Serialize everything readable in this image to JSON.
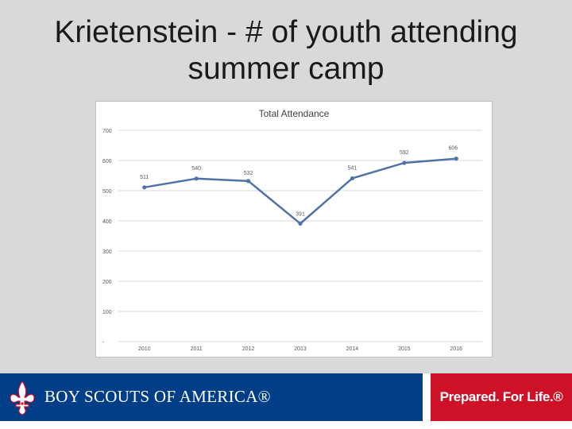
{
  "slide": {
    "title_line1": "Krietenstein - # of youth attending",
    "title_line2": "summer camp"
  },
  "footer": {
    "org_name": "BOY SCOUTS OF AMERICA®",
    "tagline": "Prepared. For Life.®",
    "logo_icon": "fleur-de-lis-icon",
    "colors": {
      "brand_blue": "#003f87",
      "brand_red": "#ce1126"
    }
  },
  "chart_data": {
    "type": "line",
    "title": "Total Attendance",
    "xlabel": "",
    "ylabel": "",
    "categories": [
      "2010",
      "2011",
      "2012",
      "2013",
      "2014",
      "2015",
      "2016"
    ],
    "series": [
      {
        "values": [
          511,
          540,
          532,
          391,
          541,
          592,
          606
        ],
        "color": "#4f72a6"
      }
    ],
    "data_labels": [
      "511",
      "540",
      "532",
      "391",
      "541",
      "592",
      "606"
    ],
    "y_ticks": [
      0,
      100,
      200,
      300,
      400,
      500,
      600,
      700
    ],
    "y_tick_labels": [
      "-",
      "100",
      "200",
      "300",
      "400",
      "500",
      "600",
      "700"
    ],
    "ylim": [
      0,
      700
    ],
    "grid": true,
    "legend": "none"
  }
}
